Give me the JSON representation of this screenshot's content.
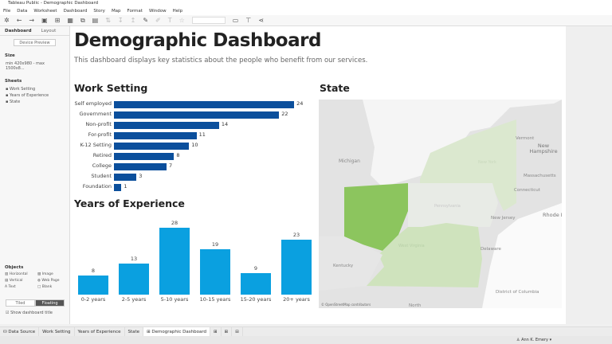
{
  "window": {
    "title": "Tableau Public - Demographic Dashboard"
  },
  "menu": [
    "File",
    "Data",
    "Worksheet",
    "Dashboard",
    "Story",
    "Map",
    "Format",
    "Window",
    "Help"
  ],
  "left": {
    "tabs": [
      "Dashboard",
      "Layout"
    ],
    "device_preview": "Device Preview",
    "size_label": "Size",
    "size_value": "min 420x980 - max 1500x8...",
    "sheets_label": "Sheets",
    "sheets": [
      "Work Setting",
      "Years of Experience",
      "State"
    ],
    "objects_label": "Objects",
    "objects": [
      "Horizontal",
      "Image",
      "Vertical",
      "Web Page",
      "Text",
      "Blank"
    ],
    "tiled": "Tiled",
    "floating": "Floating",
    "show_title": "Show dashboard title"
  },
  "dashboard": {
    "title": "Demographic Dashboard",
    "subtitle": "This dashboard displays key statistics about the people who benefit from our services."
  },
  "chart_data": [
    {
      "type": "bar",
      "title": "Work Setting",
      "orientation": "horizontal",
      "categories": [
        "Self employed",
        "Government",
        "Non-profit",
        "For-profit",
        "K-12 Setting",
        "Retired",
        "College",
        "Student",
        "Foundation"
      ],
      "values": [
        24,
        22,
        14,
        11,
        10,
        8,
        7,
        3,
        1
      ],
      "color": "#0b4f9c"
    },
    {
      "type": "bar",
      "title": "Years of Experience",
      "categories": [
        "0-2 years",
        "2-5 years",
        "5-10 years",
        "10-15 years",
        "15-20 years",
        "20+ years"
      ],
      "values": [
        8,
        13,
        28,
        19,
        9,
        23
      ],
      "color": "#0aa0e0"
    }
  ],
  "map": {
    "title": "State",
    "labels": [
      "Michigan",
      "Vermont",
      "New Hampshire",
      "Massachusetts",
      "Connecticut",
      "Rhode I",
      "New Jersey",
      "Delaware",
      "Kentucky",
      "District of Columbia",
      "North",
      "Pennsylvania",
      "New York",
      "West Virginia"
    ],
    "attribution": "© OpenStreetMap contributors",
    "highlight_color": "#8cc55e",
    "light_color": "#dbe8cf"
  },
  "bottom_tabs": [
    "Data Source",
    "Work Setting",
    "Years of Experience",
    "State",
    "Demographic Dashboard"
  ],
  "status": {
    "user": "Ann K. Emery"
  }
}
